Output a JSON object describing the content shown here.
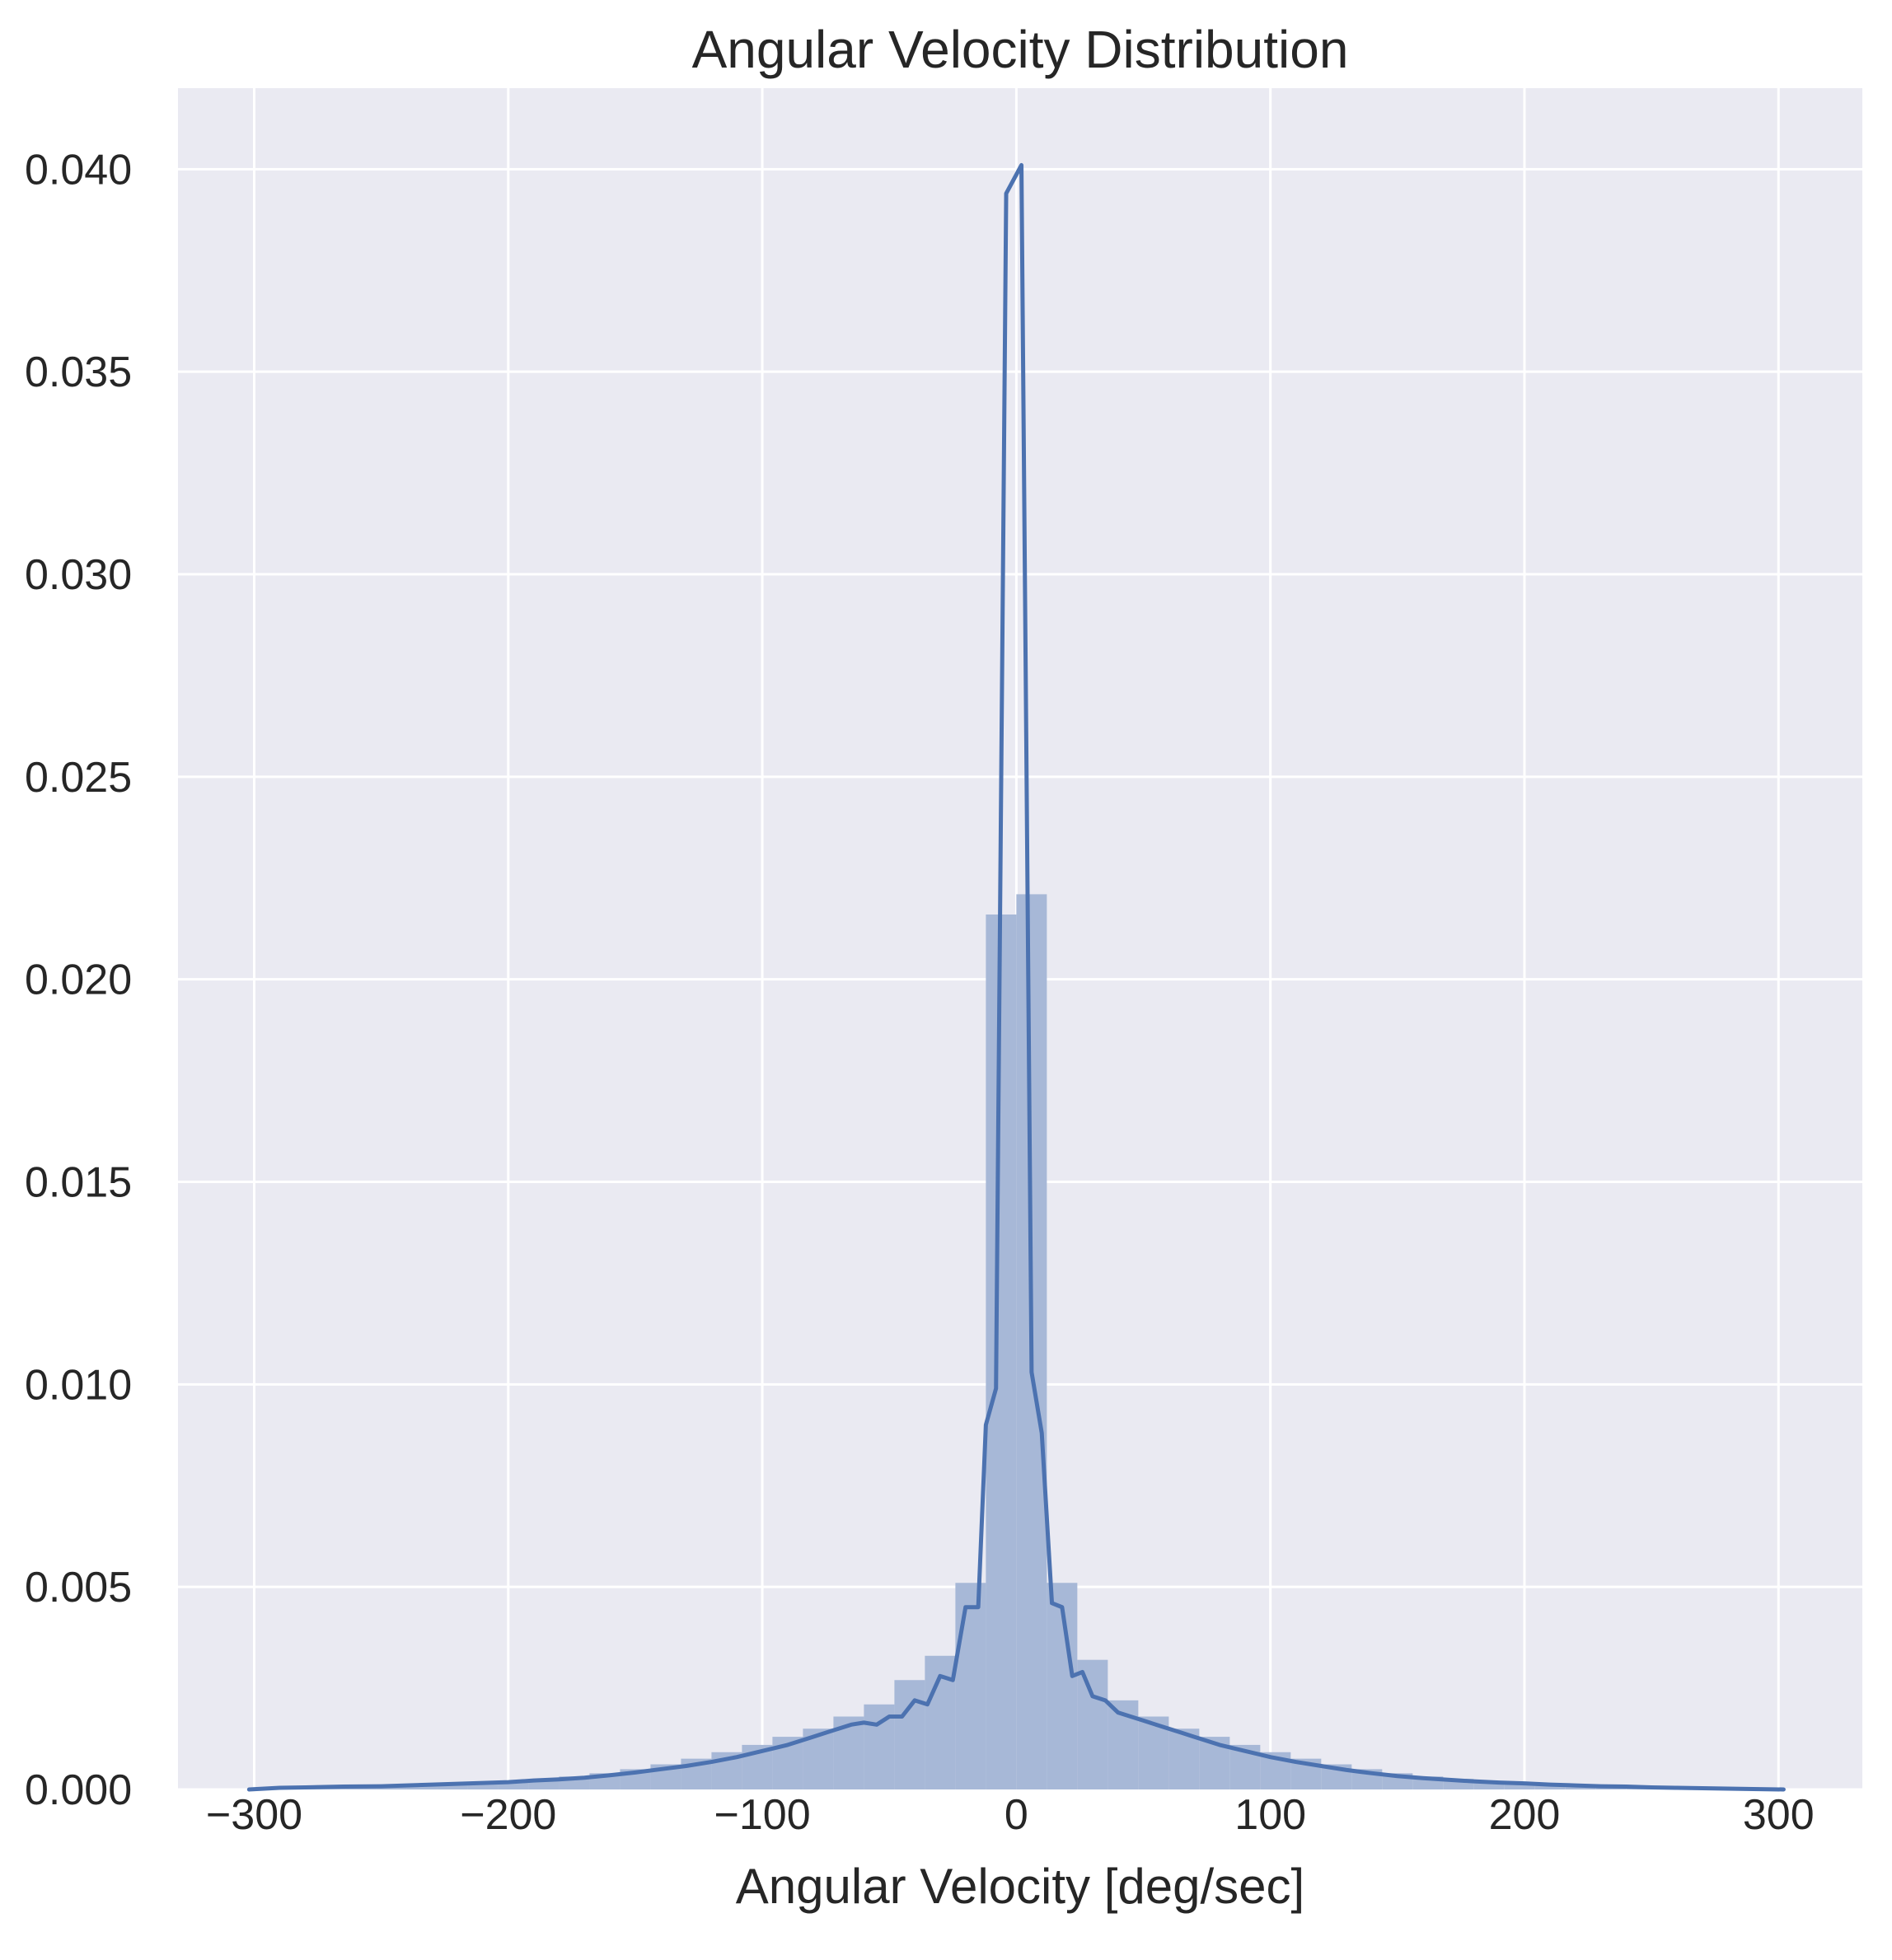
{
  "chart_data": {
    "type": "histogram",
    "title": "Angular Velocity Distribution",
    "xlabel": "Angular Velocity [deg/sec]",
    "ylabel": "",
    "xlim": [
      -330,
      333
    ],
    "ylim": [
      0,
      0.042
    ],
    "grid": true,
    "legend": "none",
    "xticks": [
      {
        "value": -300,
        "label": "−300"
      },
      {
        "value": -200,
        "label": "−200"
      },
      {
        "value": -100,
        "label": "−100"
      },
      {
        "value": 0,
        "label": "0"
      },
      {
        "value": 100,
        "label": "100"
      },
      {
        "value": 200,
        "label": "200"
      },
      {
        "value": 300,
        "label": "300"
      }
    ],
    "yticks": [
      {
        "value": 0.0,
        "label": "0.000"
      },
      {
        "value": 0.005,
        "label": "0.005"
      },
      {
        "value": 0.01,
        "label": "0.010"
      },
      {
        "value": 0.015,
        "label": "0.015"
      },
      {
        "value": 0.02,
        "label": "0.020"
      },
      {
        "value": 0.025,
        "label": "0.025"
      },
      {
        "value": 0.03,
        "label": "0.030"
      },
      {
        "value": 0.035,
        "label": "0.035"
      },
      {
        "value": 0.04,
        "label": "0.040"
      }
    ],
    "colors": {
      "background": "#EAEAF2",
      "grid": "#FFFFFF",
      "bars": "#A7B8D7",
      "line": "#4C72B0"
    },
    "histogram": {
      "bin_edges": [
        -300,
        -288,
        -276,
        -264,
        -252,
        -240,
        -228,
        -216,
        -204,
        -192,
        -180,
        -168,
        -156,
        -144,
        -132,
        -120,
        -108,
        -96,
        -84,
        -72,
        -60,
        -48,
        -36,
        -24,
        -12,
        0,
        12,
        24,
        36,
        48,
        60,
        72,
        84,
        96,
        108,
        120,
        132,
        144,
        156,
        168,
        180,
        192,
        204,
        216,
        228,
        240,
        252,
        264,
        276,
        288,
        300
      ],
      "values": [
        3e-05,
        4e-05,
        5e-05,
        7e-05,
        9e-05,
        0.00011,
        0.00014,
        0.00017,
        0.00021,
        0.00026,
        0.00032,
        0.0004,
        0.0005,
        0.00062,
        0.00076,
        0.00092,
        0.0011,
        0.0013,
        0.0015,
        0.0018,
        0.0021,
        0.0027,
        0.0033,
        0.0051,
        0.0216,
        0.0221,
        0.0051,
        0.0032,
        0.0022,
        0.0018,
        0.0015,
        0.0013,
        0.0011,
        0.00092,
        0.00076,
        0.00062,
        0.0005,
        0.0004,
        0.00032,
        0.00026,
        0.00021,
        0.00017,
        0.00013,
        0.0001,
        8e-05,
        6e-05,
        5e-05,
        4e-05,
        3e-05,
        2e-05
      ]
    },
    "series": [
      {
        "type": "line",
        "x": [
          -302,
          -290,
          -280,
          -265,
          -250,
          -240,
          -230,
          -220,
          -210,
          -200,
          -195,
          -190,
          -180,
          -170,
          -160,
          -150,
          -140,
          -130,
          -120,
          -110,
          -100,
          -90,
          -80,
          -75,
          -70,
          -65,
          -60,
          -55,
          -50,
          -45,
          -40,
          -35,
          -30,
          -25,
          -20,
          -15,
          -12,
          -8,
          -4,
          2,
          6,
          10,
          14,
          18,
          22,
          26,
          30,
          35,
          40,
          45,
          50,
          55,
          60,
          65,
          70,
          75,
          80,
          90,
          100,
          110,
          120,
          130,
          140,
          150,
          160,
          170,
          180,
          190,
          200,
          210,
          220,
          230,
          240,
          250,
          260,
          270,
          280,
          290,
          302
        ],
        "y": [
          0.0,
          4e-05,
          5e-05,
          7e-05,
          8e-05,
          0.0001,
          0.00012,
          0.00014,
          0.00016,
          0.00018,
          0.0002,
          0.00022,
          0.00025,
          0.00029,
          0.00035,
          0.00042,
          0.0005,
          0.00058,
          0.00068,
          0.0008,
          0.00095,
          0.0011,
          0.0013,
          0.0014,
          0.0015,
          0.0016,
          0.00165,
          0.0016,
          0.0018,
          0.0018,
          0.0022,
          0.0021,
          0.0028,
          0.0027,
          0.0045,
          0.0045,
          0.009,
          0.0099,
          0.0394,
          0.0401,
          0.0103,
          0.0088,
          0.0046,
          0.0045,
          0.0028,
          0.0029,
          0.0023,
          0.0022,
          0.0019,
          0.0018,
          0.0017,
          0.0016,
          0.0015,
          0.0014,
          0.0013,
          0.0012,
          0.0011,
          0.00095,
          0.0008,
          0.00068,
          0.00058,
          0.00048,
          0.0004,
          0.00033,
          0.00028,
          0.00024,
          0.0002,
          0.00017,
          0.00015,
          0.00012,
          0.0001,
          8e-05,
          7e-05,
          5e-05,
          4e-05,
          3e-05,
          2e-05,
          1e-05,
          0.0
        ]
      }
    ]
  }
}
